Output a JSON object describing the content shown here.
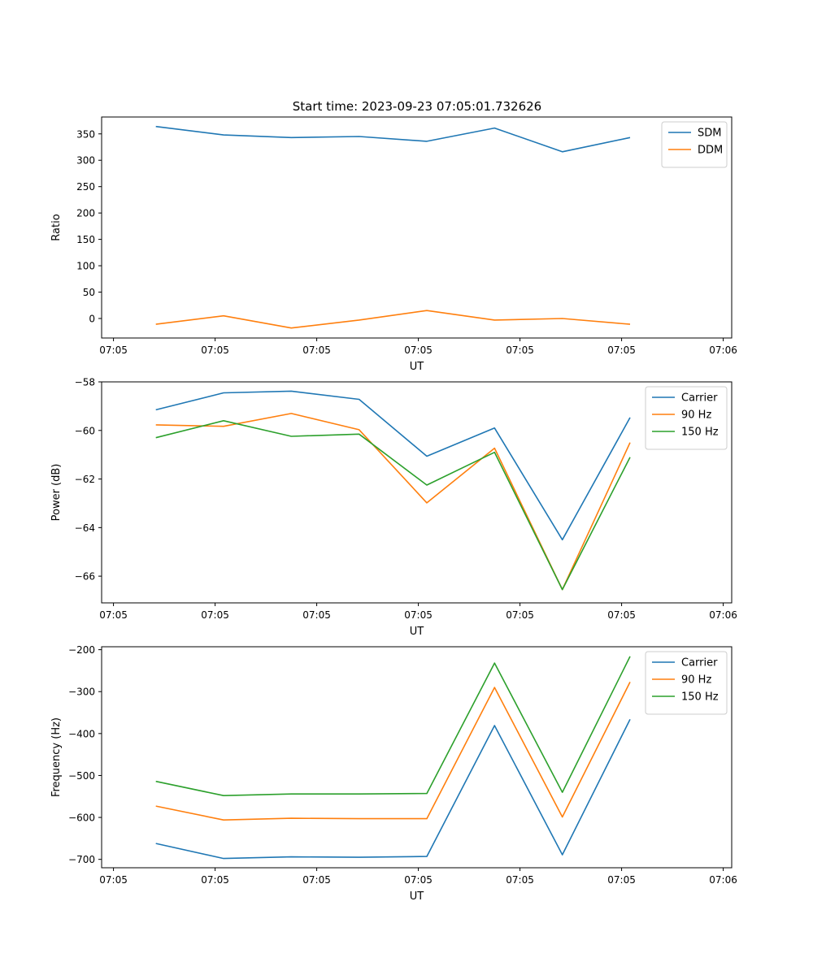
{
  "figure_title": "Start time: 2023-09-23 07:05:01.732626",
  "chart_data": [
    {
      "type": "line",
      "xlabel": "UT",
      "ylabel": "Ratio",
      "xlim": [
        -0.8,
        8.5
      ],
      "x_ticks": [
        {
          "value": -0.625,
          "label": "07:05"
        },
        {
          "value": 0.875,
          "label": "07:05"
        },
        {
          "value": 2.375,
          "label": "07:05"
        },
        {
          "value": 3.875,
          "label": "07:05"
        },
        {
          "value": 5.375,
          "label": "07:05"
        },
        {
          "value": 6.875,
          "label": "07:05"
        },
        {
          "value": 8.375,
          "label": "07:06"
        }
      ],
      "ylim": [
        -37,
        382
      ],
      "y_ticks": [
        {
          "value": 0,
          "label": "0"
        },
        {
          "value": 50,
          "label": "50"
        },
        {
          "value": 100,
          "label": "100"
        },
        {
          "value": 150,
          "label": "150"
        },
        {
          "value": 200,
          "label": "200"
        },
        {
          "value": 250,
          "label": "250"
        },
        {
          "value": 300,
          "label": "300"
        },
        {
          "value": 350,
          "label": "350"
        }
      ],
      "x": [
        0,
        1,
        2,
        3,
        4,
        5,
        6,
        7
      ],
      "series": [
        {
          "name": "SDM",
          "color": "#1f77b4",
          "values": [
            364,
            348,
            343,
            345,
            336,
            361,
            316,
            343
          ]
        },
        {
          "name": "DDM",
          "color": "#ff7f0e",
          "values": [
            -11,
            5,
            -18,
            -3,
            15,
            -3,
            0,
            -11
          ]
        }
      ],
      "legend": "top-right"
    },
    {
      "type": "line",
      "xlabel": "UT",
      "ylabel": "Power (dB)",
      "xlim": [
        -0.8,
        8.5
      ],
      "x_ticks": [
        {
          "value": -0.625,
          "label": "07:05"
        },
        {
          "value": 0.875,
          "label": "07:05"
        },
        {
          "value": 2.375,
          "label": "07:05"
        },
        {
          "value": 3.875,
          "label": "07:05"
        },
        {
          "value": 5.375,
          "label": "07:05"
        },
        {
          "value": 6.875,
          "label": "07:05"
        },
        {
          "value": 8.375,
          "label": "07:06"
        }
      ],
      "ylim": [
        -67.1,
        -58.0
      ],
      "y_ticks": [
        {
          "value": -58,
          "label": "−58"
        },
        {
          "value": -60,
          "label": "−60"
        },
        {
          "value": -62,
          "label": "−62"
        },
        {
          "value": -64,
          "label": "−64"
        },
        {
          "value": -66,
          "label": "−66"
        }
      ],
      "x": [
        0,
        1,
        2,
        3,
        4,
        5,
        6,
        7
      ],
      "series": [
        {
          "name": "Carrier",
          "color": "#1f77b4",
          "values": [
            -59.15,
            -58.45,
            -58.38,
            -58.72,
            -61.06,
            -59.9,
            -64.5,
            -59.47
          ]
        },
        {
          "name": "90 Hz",
          "color": "#ff7f0e",
          "values": [
            -59.77,
            -59.83,
            -59.3,
            -59.97,
            -62.98,
            -60.73,
            -66.55,
            -60.5
          ]
        },
        {
          "name": "150 Hz",
          "color": "#2ca02c",
          "values": [
            -60.3,
            -59.6,
            -60.24,
            -60.15,
            -62.25,
            -60.9,
            -66.55,
            -61.1
          ]
        }
      ],
      "legend": "top-right"
    },
    {
      "type": "line",
      "xlabel": "UT",
      "ylabel": "Frequency (Hz)",
      "xlim": [
        -0.8,
        8.5
      ],
      "x_ticks": [
        {
          "value": -0.625,
          "label": "07:05"
        },
        {
          "value": 0.875,
          "label": "07:05"
        },
        {
          "value": 2.375,
          "label": "07:05"
        },
        {
          "value": 3.875,
          "label": "07:05"
        },
        {
          "value": 5.375,
          "label": "07:05"
        },
        {
          "value": 6.875,
          "label": "07:05"
        },
        {
          "value": 8.375,
          "label": "07:06"
        }
      ],
      "ylim": [
        -720,
        -193
      ],
      "y_ticks": [
        {
          "value": -200,
          "label": "−200"
        },
        {
          "value": -300,
          "label": "−300"
        },
        {
          "value": -400,
          "label": "−400"
        },
        {
          "value": -500,
          "label": "−500"
        },
        {
          "value": -600,
          "label": "−600"
        },
        {
          "value": -700,
          "label": "−700"
        }
      ],
      "x": [
        0,
        1,
        2,
        3,
        4,
        5,
        6,
        7
      ],
      "series": [
        {
          "name": "Carrier",
          "color": "#1f77b4",
          "values": [
            -662,
            -698,
            -694,
            -695,
            -693,
            -381,
            -689,
            -366
          ]
        },
        {
          "name": "90 Hz",
          "color": "#ff7f0e",
          "values": [
            -573,
            -606,
            -602,
            -603,
            -603,
            -290,
            -599,
            -277
          ]
        },
        {
          "name": "150 Hz",
          "color": "#2ca02c",
          "values": [
            -514,
            -548,
            -544,
            -544,
            -543,
            -232,
            -540,
            -216
          ]
        }
      ],
      "legend": "top-right"
    }
  ]
}
